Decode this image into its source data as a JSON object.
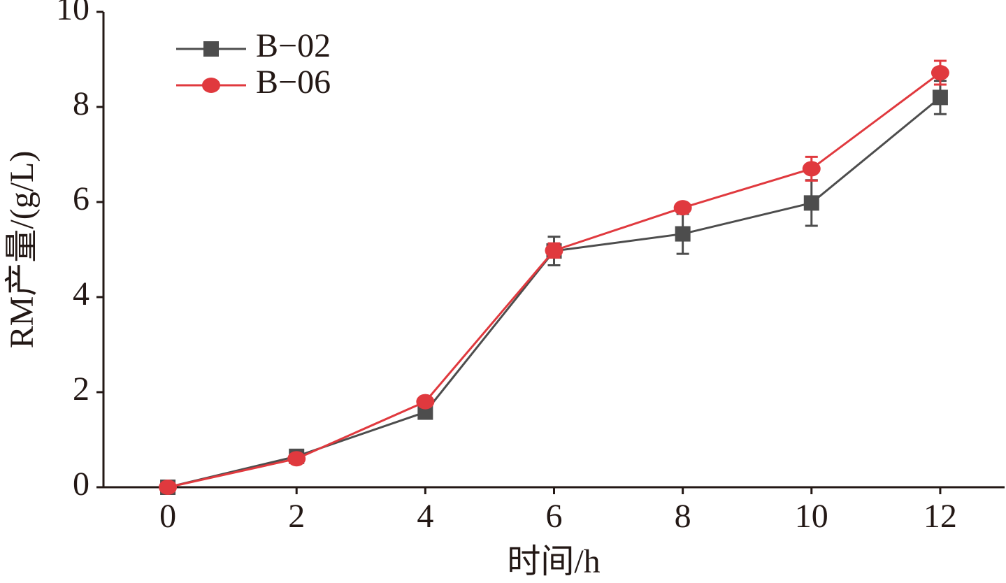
{
  "chart_data": {
    "type": "line",
    "x_label": "时间/h",
    "y_label": "RM产量/(g/L)",
    "x": [
      0,
      2,
      4,
      6,
      8,
      10,
      12
    ],
    "series": [
      {
        "name": "B−02",
        "color": "#4d4d4d",
        "marker": "square",
        "values": [
          0,
          0.65,
          1.58,
          4.97,
          5.33,
          5.98,
          8.2
        ],
        "errors": [
          0,
          0.05,
          0.05,
          0.3,
          0.42,
          0.48,
          0.35
        ]
      },
      {
        "name": "B−06",
        "color": "#e0393e",
        "marker": "circle",
        "values": [
          0,
          0.6,
          1.8,
          4.98,
          5.88,
          6.7,
          8.72
        ],
        "errors": [
          0,
          0.03,
          0.05,
          0.15,
          0.05,
          0.25,
          0.25
        ]
      }
    ],
    "xlim": [
      -1,
      13
    ],
    "xticks": [
      0,
      2,
      4,
      6,
      8,
      10,
      12
    ],
    "ylim": [
      0,
      10
    ],
    "yticks": [
      0,
      2,
      4,
      6,
      8,
      10
    ],
    "legend": "upper left"
  }
}
